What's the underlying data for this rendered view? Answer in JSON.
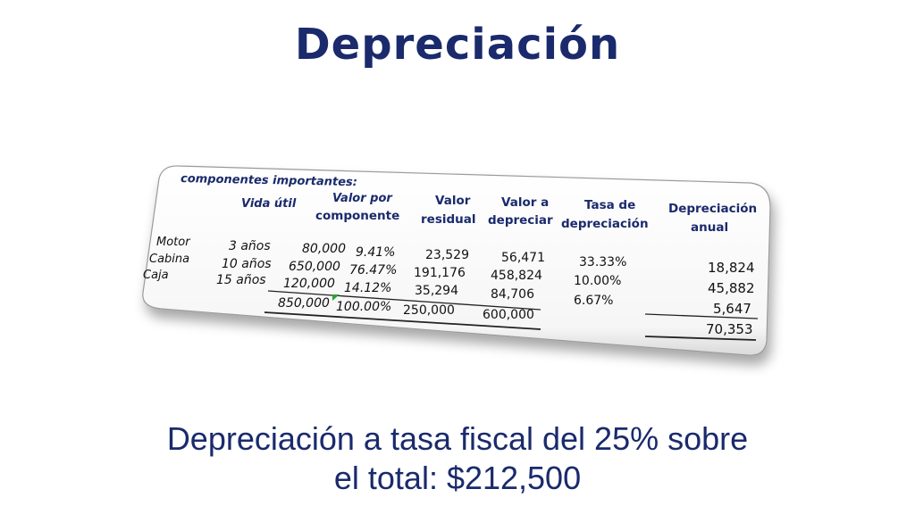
{
  "slide": {
    "title": "Depreciación",
    "subtitle_line1": "Depreciación a tasa fiscal del 25% sobre",
    "subtitle_line2": "el total: $212,500"
  },
  "table": {
    "section_label": "componentes importantes:",
    "headers": {
      "vida_util": "Vida útil",
      "valor_por_1": "Valor por",
      "valor_por_2": "componente",
      "valor_res_1": "Valor",
      "valor_res_2": "residual",
      "valor_dep_1": "Valor a",
      "valor_dep_2": "depreciar",
      "tasa_1": "Tasa de",
      "tasa_2": "depreciación",
      "dep_anual_1": "Depreciación",
      "dep_anual_2": "anual"
    },
    "rows": [
      {
        "name": "Motor",
        "vida": "3 años",
        "valor": "80,000",
        "pct": "9.41%",
        "residual": "23,529",
        "depreciar": "56,471",
        "tasa": "33.33%",
        "anual": "18,824"
      },
      {
        "name": "Cabina",
        "vida": "10 años",
        "valor": "650,000",
        "pct": "76.47%",
        "residual": "191,176",
        "depreciar": "458,824",
        "tasa": "10.00%",
        "anual": "45,882"
      },
      {
        "name": "Caja",
        "vida": "15 años",
        "valor": "120,000",
        "pct": "14.12%",
        "residual": "35,294",
        "depreciar": "84,706",
        "tasa": "6.67%",
        "anual": "5,647"
      }
    ],
    "totals": {
      "valor": "850,000",
      "pct": "100.00%",
      "residual": "250,000",
      "depreciar": "600,000",
      "anual": "70,353"
    }
  },
  "colors": {
    "title": "#1a2a6c",
    "header": "#1a2a6c",
    "card_border": "#9a9a9a",
    "triangle_marker": "#2e9e3a"
  }
}
